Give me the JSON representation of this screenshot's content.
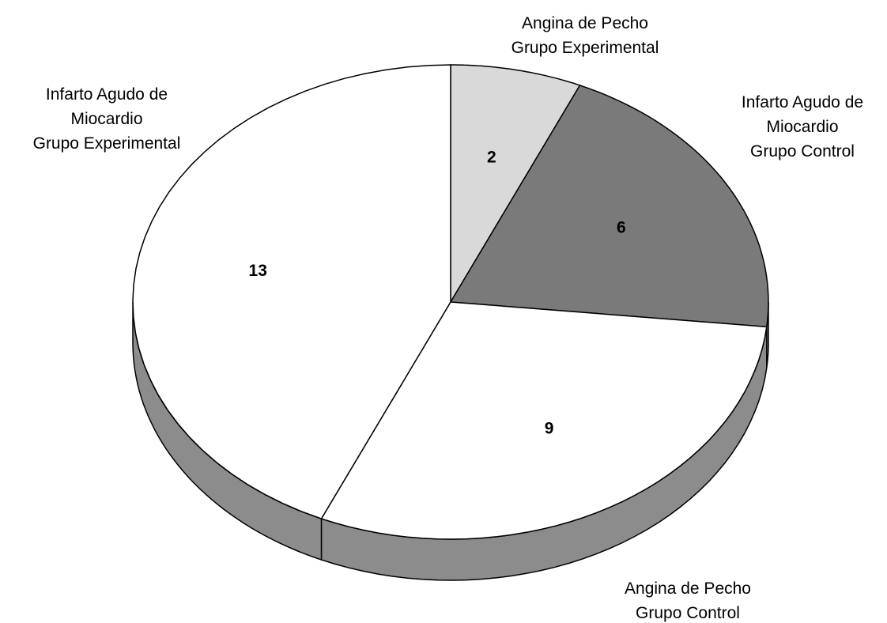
{
  "chart_data": {
    "type": "pie3d",
    "categories": [
      "Angina de Pecho\nGrupo Experimental",
      "Infarto Agudo de\nMiocardio\nGrupo Control",
      "Angina de Pecho\nGrupo Control",
      "Infarto Agudo de\nMiocardio\nGrupo Experimental"
    ],
    "values": [
      2,
      6,
      9,
      13
    ],
    "colors": [
      "#d9d9d9",
      "#7a7a7a",
      "#ffffff",
      "#ffffff"
    ],
    "side_color": "#8c8c8c"
  }
}
